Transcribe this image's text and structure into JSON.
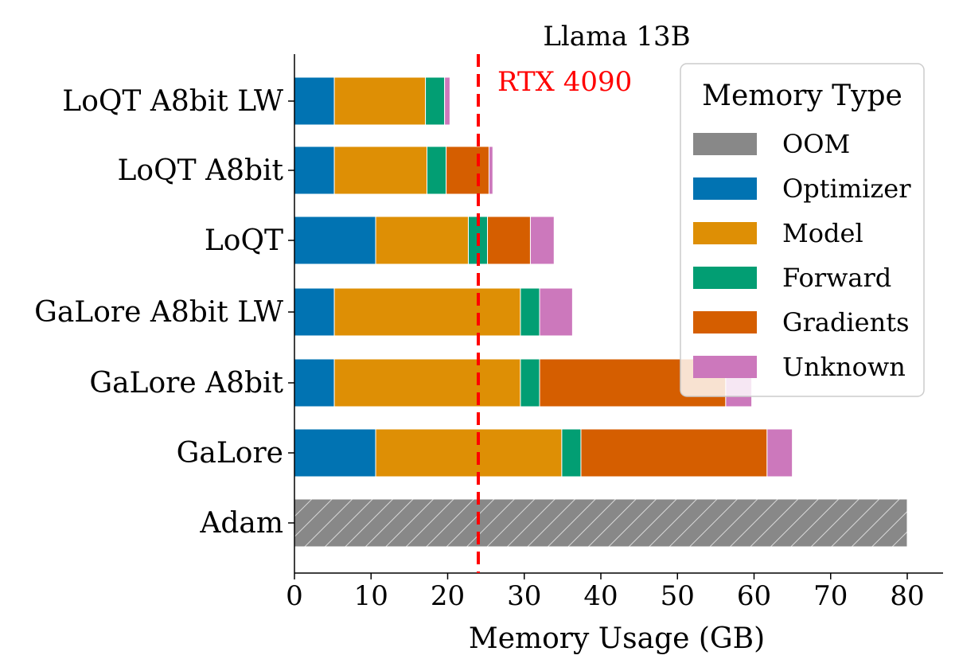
{
  "chart_data": {
    "type": "bar",
    "orientation": "horizontal",
    "stacked": true,
    "title": "Llama 13B",
    "xlabel": "Memory Usage (GB)",
    "ylabel": "",
    "xlim": [
      0,
      82
    ],
    "xticks": [
      0,
      10,
      20,
      30,
      40,
      50,
      60,
      70,
      80
    ],
    "grid": false,
    "categories": [
      "LoQT A8bit LW",
      "LoQT A8bit",
      "LoQT",
      "GaLore A8bit LW",
      "GaLore A8bit",
      "GaLore",
      "Adam"
    ],
    "series": [
      {
        "name": "OOM",
        "color": "#888888",
        "pattern": "hatch",
        "values": [
          0,
          0,
          0,
          0,
          0,
          0,
          80
        ]
      },
      {
        "name": "Optimizer",
        "color": "#0173b2",
        "values": [
          5.2,
          5.2,
          10.6,
          5.2,
          5.2,
          10.6,
          0
        ]
      },
      {
        "name": "Model",
        "color": "#de8f05",
        "values": [
          11.9,
          12.1,
          12.1,
          24.3,
          24.3,
          24.3,
          0
        ]
      },
      {
        "name": "Forward",
        "color": "#029e73",
        "values": [
          2.5,
          2.5,
          2.5,
          2.5,
          2.5,
          2.5,
          0
        ]
      },
      {
        "name": "Gradients",
        "color": "#d55e00",
        "values": [
          0,
          5.6,
          5.6,
          0,
          24.3,
          24.3,
          0
        ]
      },
      {
        "name": "Unknown",
        "color": "#cc78bc",
        "values": [
          0.7,
          0.5,
          3.1,
          4.3,
          3.4,
          3.3,
          0
        ]
      }
    ],
    "reference_line": {
      "x": 24,
      "label": "RTX 4090",
      "color": "#ff0000",
      "style": "dashed"
    },
    "legend": {
      "title": "Memory Type",
      "placement": "top-right"
    }
  }
}
